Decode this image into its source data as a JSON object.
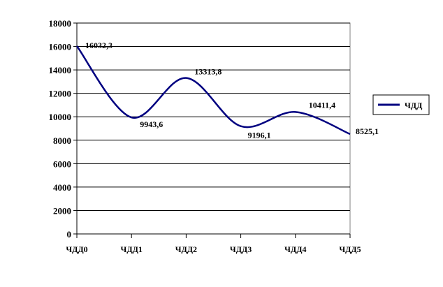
{
  "chart_data": {
    "type": "line",
    "title": "",
    "xlabel": "",
    "ylabel": "",
    "categories": [
      "ЧДД0",
      "ЧДД1",
      "ЧДД2",
      "ЧДД3",
      "ЧДД4",
      "ЧДД5"
    ],
    "series": [
      {
        "name": "ЧДД",
        "values": [
          16032.3,
          9943.6,
          13313.8,
          9196.1,
          10411.4,
          8525.1
        ],
        "labels": [
          "16032,3",
          "9943,6",
          "13313,8",
          "9196,1",
          "10411,4",
          "8525,1"
        ],
        "color": "#000080"
      }
    ],
    "ylim": [
      0,
      18000
    ],
    "yticks": [
      0,
      2000,
      4000,
      6000,
      8000,
      10000,
      12000,
      14000,
      16000,
      18000
    ],
    "grid": true,
    "smooth": true,
    "legend_position": "right"
  }
}
